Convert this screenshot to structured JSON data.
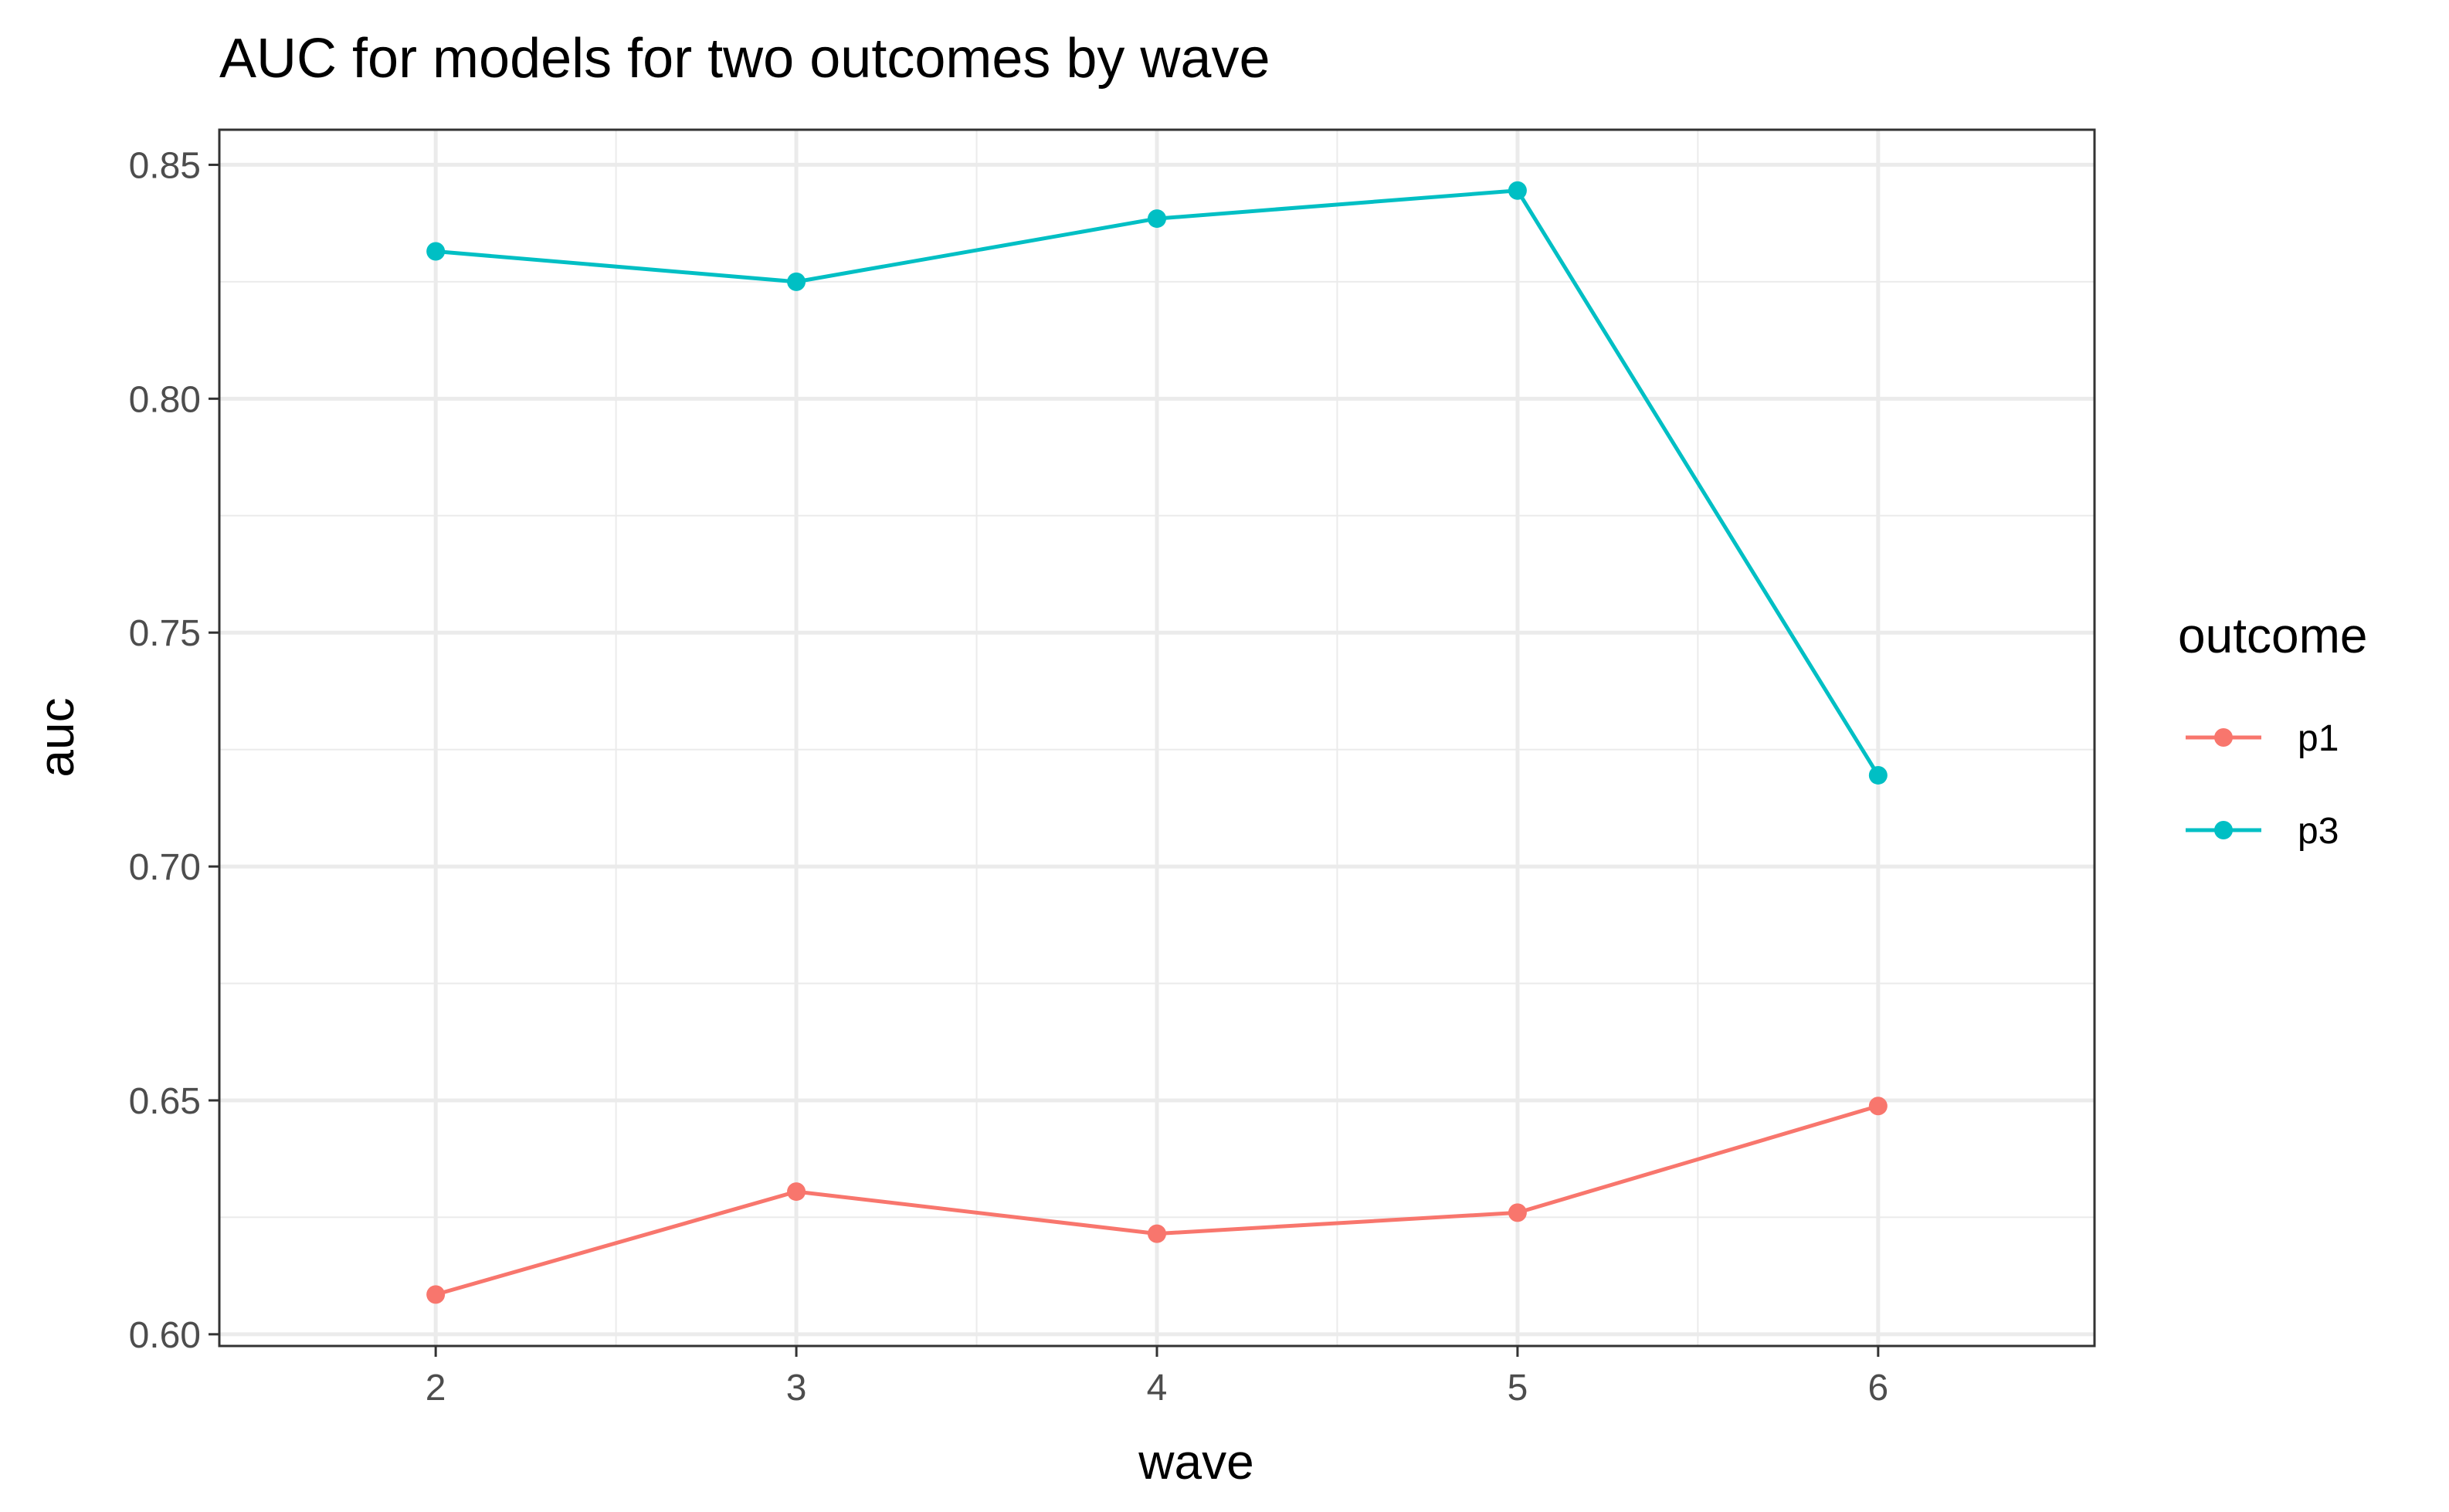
{
  "chart_data": {
    "type": "line",
    "title": "AUC for models for two outcomes by wave",
    "xlabel": "wave",
    "ylabel": "auc",
    "x": [
      2,
      3,
      4,
      5,
      6
    ],
    "xlim": [
      1.4,
      6.6
    ],
    "ylim": [
      0.5975,
      0.8575
    ],
    "yticks": [
      0.6,
      0.65,
      0.7,
      0.75,
      0.8,
      0.85
    ],
    "ytick_labels": [
      "0.60",
      "0.65",
      "0.70",
      "0.75",
      "0.80",
      "0.85"
    ],
    "xtick_labels": [
      "2",
      "3",
      "4",
      "5",
      "6"
    ],
    "grid": true,
    "legend": {
      "title": "outcome",
      "placement": "right"
    },
    "series": [
      {
        "name": "p1",
        "color": "#F8766D",
        "values": [
          0.6085,
          0.6305,
          0.6215,
          0.626,
          0.6488
        ]
      },
      {
        "name": "p3",
        "color": "#00BFC4",
        "values": [
          0.8315,
          0.825,
          0.8385,
          0.8445,
          0.7195
        ]
      }
    ]
  }
}
